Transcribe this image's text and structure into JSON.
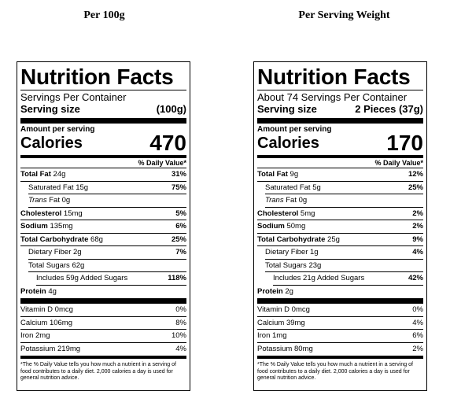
{
  "headings": {
    "left": "Per 100g",
    "right": "Per Serving Weight"
  },
  "labels": [
    {
      "title": "Nutrition Facts",
      "servings": "Servings Per Container",
      "serving_size_label": "Serving size",
      "serving_size_value": "(100g)",
      "amount_per_serving": "Amount per serving",
      "calories_label": "Calories",
      "calories_value": "470",
      "daily_value_header": "% Daily Value*",
      "total_fat": {
        "label": "Total Fat",
        "amount": "24g",
        "pct": "31%"
      },
      "saturated_fat": {
        "label": "Saturated Fat",
        "amount": "15g",
        "pct": "75%"
      },
      "trans_fat": {
        "word": "Trans",
        "label": "Fat",
        "amount": "0g"
      },
      "cholesterol": {
        "label": "Cholesterol",
        "amount": "15mg",
        "pct": "5%"
      },
      "sodium": {
        "label": "Sodium",
        "amount": "135mg",
        "pct": "6%"
      },
      "total_carbohydrate": {
        "label": "Total Carbohydrate",
        "amount": "68g",
        "pct": "25%"
      },
      "dietary_fiber": {
        "label": "Dietary Fiber",
        "amount": "2g",
        "pct": "7%"
      },
      "total_sugars": {
        "label": "Total Sugars",
        "amount": "62g"
      },
      "added_sugars": {
        "prefix": "Includes",
        "amount": "59g",
        "suffix": "Added Sugars",
        "pct": "118%"
      },
      "protein": {
        "label": "Protein",
        "amount": "4g"
      },
      "vitamin_d": {
        "label": "Vitamin D",
        "amount": "0mcg",
        "pct": "0%"
      },
      "calcium": {
        "label": "Calcium",
        "amount": "106mg",
        "pct": "8%"
      },
      "iron": {
        "label": "Iron",
        "amount": "2mg",
        "pct": "10%"
      },
      "potassium": {
        "label": "Potassium",
        "amount": "219mg",
        "pct": "4%"
      },
      "footnote": "*The % Daily Value tells you how much a nutrient in a serving of food contributes to a daily diet. 2,000 calories a day is used for general nutrition advice."
    },
    {
      "title": "Nutrition Facts",
      "servings": "About 74 Servings Per Container",
      "serving_size_label": "Serving size",
      "serving_size_value": "2 Pieces (37g)",
      "amount_per_serving": "Amount per serving",
      "calories_label": "Calories",
      "calories_value": "170",
      "daily_value_header": "% Daily Value*",
      "total_fat": {
        "label": "Total Fat",
        "amount": "9g",
        "pct": "12%"
      },
      "saturated_fat": {
        "label": "Saturated Fat",
        "amount": "5g",
        "pct": "25%"
      },
      "trans_fat": {
        "word": "Trans",
        "label": "Fat",
        "amount": "0g"
      },
      "cholesterol": {
        "label": "Cholesterol",
        "amount": "5mg",
        "pct": "2%"
      },
      "sodium": {
        "label": "Sodium",
        "amount": "50mg",
        "pct": "2%"
      },
      "total_carbohydrate": {
        "label": "Total Carbohydrate",
        "amount": "25g",
        "pct": "9%"
      },
      "dietary_fiber": {
        "label": "Dietary Fiber",
        "amount": "1g",
        "pct": "4%"
      },
      "total_sugars": {
        "label": "Total Sugars",
        "amount": "23g"
      },
      "added_sugars": {
        "prefix": "Includes",
        "amount": "21g",
        "suffix": "Added Sugars",
        "pct": "42%"
      },
      "protein": {
        "label": "Protein",
        "amount": "2g"
      },
      "vitamin_d": {
        "label": "Vitamin D",
        "amount": "0mcg",
        "pct": "0%"
      },
      "calcium": {
        "label": "Calcium",
        "amount": "39mg",
        "pct": "4%"
      },
      "iron": {
        "label": "Iron",
        "amount": "1mg",
        "pct": "6%"
      },
      "potassium": {
        "label": "Potassium",
        "amount": "80mg",
        "pct": "2%"
      },
      "footnote": "*The % Daily Value tells you how much a nutrient in a serving of food contributes to a daily diet. 2,000 calories a day is used for general nutrition advice."
    }
  ]
}
